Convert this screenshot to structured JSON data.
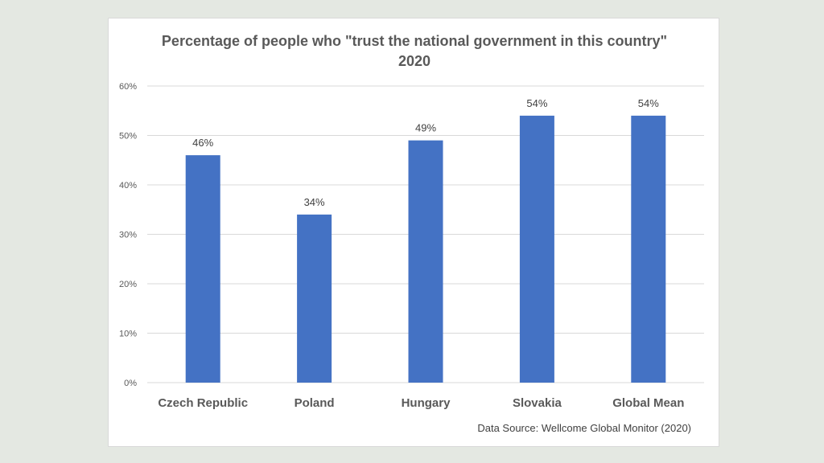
{
  "chart_data": {
    "type": "bar",
    "title": "Percentage of people who \"trust the national government in this country\" 2020",
    "categories": [
      "Czech Republic",
      "Poland",
      "Hungary",
      "Slovakia",
      "Global Mean"
    ],
    "values": [
      46,
      34,
      49,
      54,
      54
    ],
    "data_labels": [
      "46%",
      "34%",
      "49%",
      "54%",
      "54%"
    ],
    "ylim": [
      0,
      60
    ],
    "yticks": [
      0,
      10,
      20,
      30,
      40,
      50,
      60
    ],
    "ytick_labels": [
      "0%",
      "10%",
      "20%",
      "30%",
      "40%",
      "50%",
      "60%"
    ],
    "grid": true,
    "bar_color": "#4472c4",
    "gridline_color": "#d9d9d9",
    "source": "Data Source: Wellcome Global Monitor (2020)"
  }
}
